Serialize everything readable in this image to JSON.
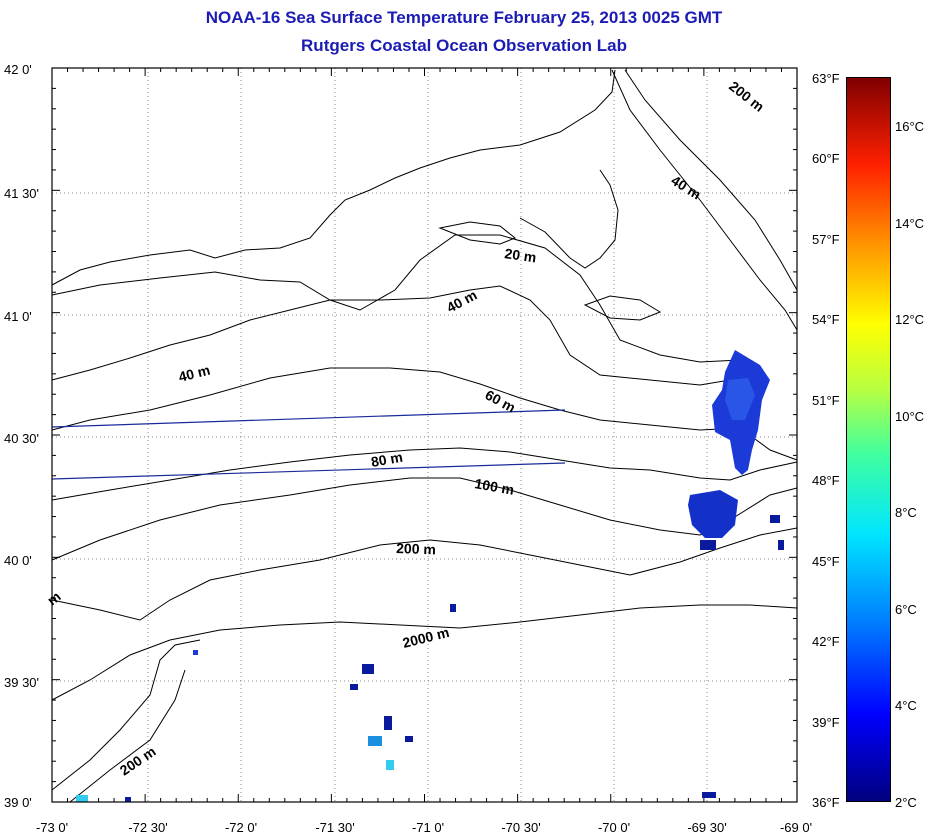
{
  "title": {
    "line1": "NOAA-16 Sea Surface Temperature February 25, 2013 0025 GMT",
    "line2": "Rutgers Coastal Ocean Observation Lab"
  },
  "axes": {
    "lat_labels": [
      "42 0'",
      "41 30'",
      "41 0'",
      "40 30'",
      "40 0'",
      "39 30'",
      "39 0'"
    ],
    "lon_labels": [
      "-73 0'",
      "-72 30'",
      "-72 0'",
      "-71 30'",
      "-71 0'",
      "-70 30'",
      "-70 0'",
      "-69 30'",
      "-69 0'"
    ]
  },
  "colorbar": {
    "fahrenheit": [
      "63°F",
      "60°F",
      "57°F",
      "54°F",
      "51°F",
      "48°F",
      "45°F",
      "42°F",
      "39°F",
      "36°F"
    ],
    "celsius": [
      "16°C",
      "14°C",
      "12°C",
      "10°C",
      "8°C",
      "6°C",
      "4°C",
      "2°C"
    ]
  },
  "contours": {
    "c20": "20 m",
    "c40a": "40 m",
    "c40b": "40 m",
    "c40c": "40 m",
    "c60": "60 m",
    "c80": "80 m",
    "c100": "100 m",
    "c200a": "200 m",
    "c200b": "200 m",
    "c200c": "200 m",
    "c2000": "2000 m",
    "cm": "m"
  },
  "colors": {
    "title": "#1c1cb4",
    "coast": "#000000",
    "track": "#1a2a9a",
    "sst_cold": "#1b3ad8",
    "sst_deep": "#0a1a9c",
    "sst_cyan": "#33ccee"
  }
}
